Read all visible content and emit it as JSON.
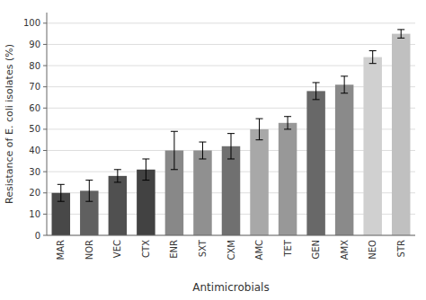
{
  "chart_data": {
    "type": "bar",
    "categories": [
      "MAR",
      "NOR",
      "VEC",
      "CTX",
      "ENR",
      "SXT",
      "CXM",
      "AMC",
      "TET",
      "GEN",
      "AMX",
      "NEO",
      "STR"
    ],
    "values": [
      20,
      21,
      28,
      31,
      40,
      40,
      42,
      50,
      53,
      68,
      71,
      84,
      95
    ],
    "errors": [
      4,
      5,
      3,
      5,
      9,
      4,
      6,
      5,
      3,
      4,
      4,
      3,
      2
    ],
    "colors": [
      "#484848",
      "#606060",
      "#505050",
      "#424242",
      "#888888",
      "#909090",
      "#707070",
      "#a8a8a8",
      "#989898",
      "#686868",
      "#8a8a8a",
      "#d0d0d0",
      "#c0c0c0"
    ],
    "xlabel": "Antimicrobials",
    "ylabel": "Resistance of E. coli isolates (%)",
    "ylim": [
      0,
      105
    ],
    "yticks": [
      0,
      10,
      20,
      30,
      40,
      50,
      60,
      70,
      80,
      90,
      100
    ],
    "grid": true
  }
}
